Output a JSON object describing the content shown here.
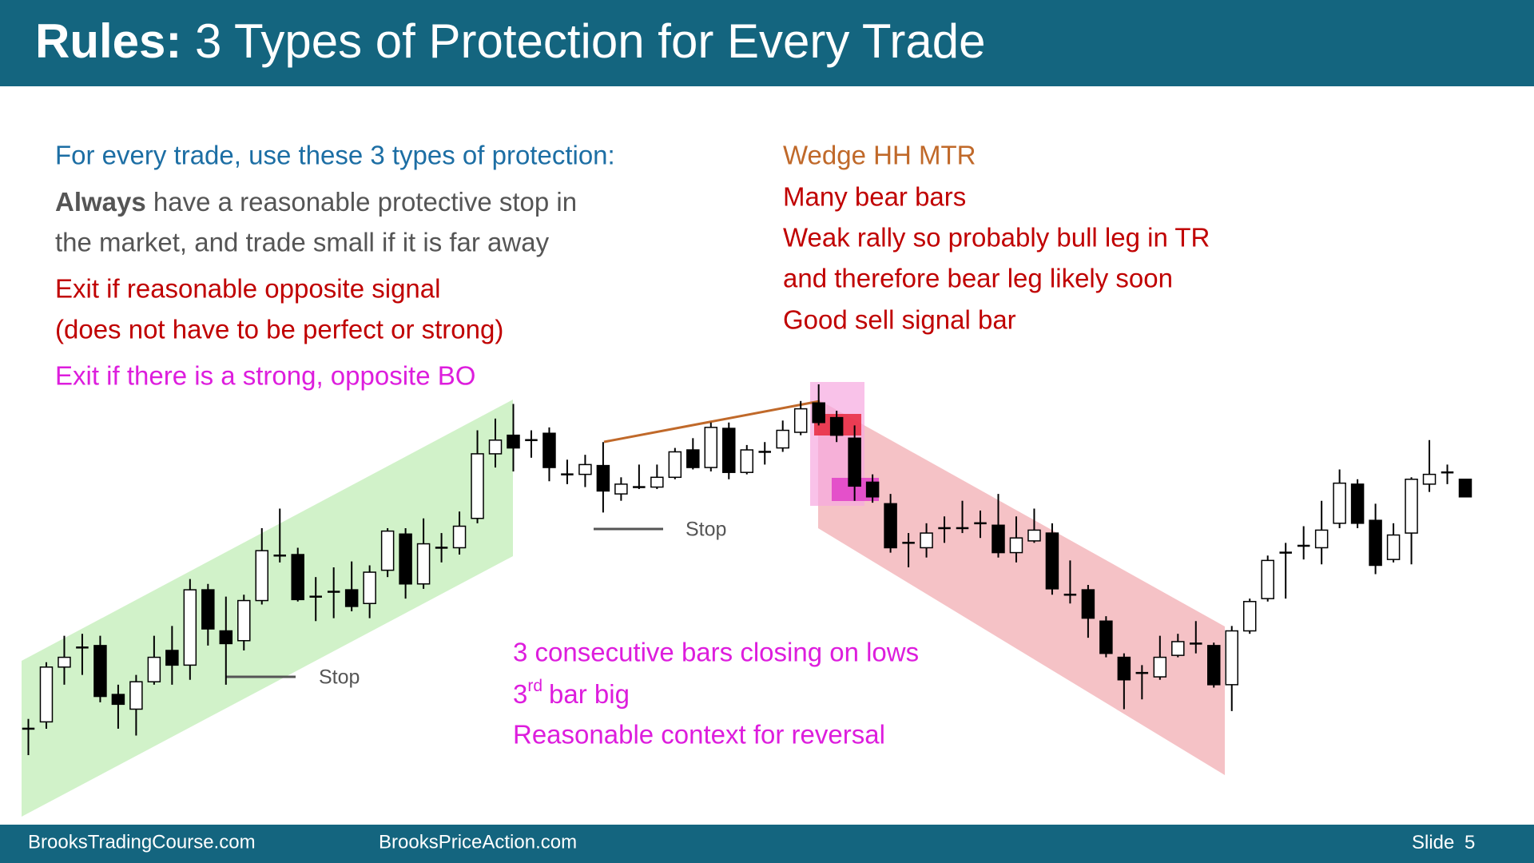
{
  "header": {
    "title_bold": "Rules:",
    "title_rest": "3 Types of Protection for Every Trade"
  },
  "left_notes": {
    "heading": "For every trade, use these 3 types of protection:",
    "stop_bold": "Always",
    "stop_rest": "have a reasonable protective stop in",
    "stop_line2": "the market, and trade small if it is far away",
    "exit_signal": [
      "Exit if reasonable opposite signal",
      "(does not have to be perfect or strong)"
    ],
    "exit_bo": "Exit if there is a strong, opposite BO"
  },
  "right_notes": {
    "setup": "Wedge HH MTR",
    "lines": [
      "Many bear bars",
      "Weak rally so probably bull leg in TR",
      "and therefore bear leg likely soon",
      "Good sell signal bar"
    ]
  },
  "reversal_notes": {
    "line1": "3 consecutive bars closing on lows",
    "line2_num": "3",
    "line2_sup": "rd",
    "line2_rest": "bar big",
    "line3": "Reasonable context for reversal"
  },
  "stop_labels": [
    "Stop",
    "Stop"
  ],
  "footer": {
    "left": "BrooksTradingCourse.com",
    "middle": "BrooksPriceAction.com",
    "slide_label": "Slide",
    "slide_number": "5"
  },
  "chart_data": {
    "type": "candlestick",
    "bull_color": "#ffffff",
    "bear_color": "#000000",
    "ohlc": [
      [
        155,
        165,
        128,
        155
      ],
      [
        162,
        223,
        155,
        218
      ],
      [
        218,
        250,
        200,
        228
      ],
      [
        238,
        252,
        210,
        238
      ],
      [
        240,
        250,
        182,
        188
      ],
      [
        190,
        200,
        155,
        180
      ],
      [
        175,
        210,
        148,
        203
      ],
      [
        203,
        250,
        200,
        228
      ],
      [
        235,
        260,
        200,
        220
      ],
      [
        220,
        308,
        205,
        297
      ],
      [
        297,
        303,
        240,
        257
      ],
      [
        255,
        290,
        200,
        242
      ],
      [
        245,
        292,
        235,
        286
      ],
      [
        286,
        360,
        282,
        337
      ],
      [
        332,
        380,
        325,
        332
      ],
      [
        333,
        340,
        285,
        287
      ],
      [
        290,
        310,
        265,
        290
      ],
      [
        295,
        320,
        268,
        295
      ],
      [
        297,
        326,
        275,
        280
      ],
      [
        283,
        322,
        268,
        315
      ],
      [
        317,
        360,
        310,
        357
      ],
      [
        354,
        360,
        288,
        303
      ],
      [
        303,
        370,
        298,
        344
      ],
      [
        340,
        355,
        325,
        340
      ],
      [
        340,
        377,
        333,
        362
      ],
      [
        370,
        460,
        365,
        436
      ],
      [
        436,
        472,
        422,
        450
      ],
      [
        455,
        487,
        418,
        442
      ],
      [
        450,
        460,
        432,
        450
      ],
      [
        457,
        463,
        408,
        422
      ],
      [
        415,
        430,
        405,
        415
      ],
      [
        415,
        435,
        402,
        425
      ],
      [
        424,
        448,
        376,
        398
      ],
      [
        395,
        412,
        388,
        405
      ],
      [
        402,
        425,
        400,
        402
      ],
      [
        402,
        425,
        400,
        412
      ],
      [
        412,
        442,
        410,
        438
      ],
      [
        440,
        452,
        420,
        422
      ],
      [
        422,
        468,
        418,
        463
      ],
      [
        462,
        468,
        410,
        417
      ],
      [
        417,
        445,
        415,
        440
      ],
      [
        438,
        448,
        425,
        438
      ],
      [
        442,
        470,
        438,
        460
      ],
      [
        458,
        490,
        455,
        482
      ],
      [
        488,
        507,
        465,
        468
      ],
      [
        473,
        480,
        448,
        455
      ],
      [
        452,
        465,
        388,
        403
      ],
      [
        407,
        415,
        386,
        392
      ],
      [
        385,
        395,
        335,
        340
      ],
      [
        345,
        355,
        320,
        345
      ],
      [
        340,
        365,
        330,
        355
      ],
      [
        360,
        372,
        345,
        360
      ],
      [
        360,
        388,
        355,
        360
      ],
      [
        365,
        378,
        350,
        365
      ],
      [
        363,
        395,
        330,
        335
      ],
      [
        335,
        372,
        325,
        350
      ],
      [
        347,
        380,
        345,
        358
      ],
      [
        355,
        365,
        292,
        298
      ],
      [
        292,
        327,
        283,
        292
      ],
      [
        297,
        302,
        248,
        268
      ],
      [
        265,
        270,
        228,
        232
      ],
      [
        228,
        232,
        175,
        205
      ],
      [
        212,
        220,
        185,
        212
      ],
      [
        208,
        250,
        205,
        228
      ],
      [
        230,
        252,
        228,
        244
      ],
      [
        242,
        265,
        232,
        242
      ],
      [
        240,
        243,
        197,
        200
      ],
      [
        200,
        260,
        173,
        255
      ],
      [
        255,
        288,
        252,
        285
      ],
      [
        288,
        332,
        285,
        327
      ],
      [
        335,
        345,
        288,
        335
      ],
      [
        342,
        362,
        328,
        342
      ],
      [
        340,
        388,
        323,
        358
      ],
      [
        365,
        420,
        360,
        406
      ],
      [
        405,
        410,
        360,
        365
      ],
      [
        368,
        385,
        313,
        322
      ],
      [
        328,
        365,
        325,
        353
      ],
      [
        355,
        412,
        323,
        410
      ],
      [
        405,
        450,
        397,
        415
      ],
      [
        417,
        425,
        405,
        417
      ],
      [
        410,
        410,
        392,
        392
      ]
    ]
  }
}
